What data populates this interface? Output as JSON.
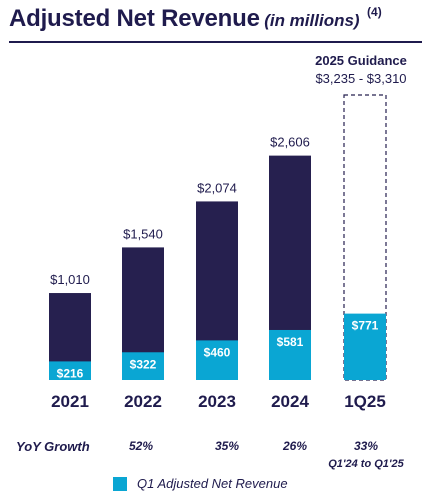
{
  "header": {
    "title": "Adjusted Net Revenue",
    "subtitle": "(in millions)",
    "footnote": "(4)"
  },
  "colors": {
    "total": "#26204f",
    "q1": "#0aa6d3",
    "text": "#1f1b4d"
  },
  "chart_data": {
    "type": "bar",
    "categories": [
      "2021",
      "2022",
      "2023",
      "2024",
      "1Q25"
    ],
    "series": [
      {
        "name": "Q1 Adjusted Net Revenue",
        "values": [
          216,
          322,
          460,
          581,
          771
        ],
        "labels": [
          "$216",
          "$322",
          "$460",
          "$581",
          "$771"
        ]
      },
      {
        "values": [
          1010,
          1540,
          2074,
          2606,
          null
        ],
        "labels": [
          "$1,010",
          "$1,540",
          "$2,074",
          "$2,606",
          ""
        ]
      }
    ],
    "guidance": {
      "category": "1Q25",
      "title": "2025 Guidance",
      "range_label": "$3,235 - $3,310",
      "low": 3235,
      "high": 3310
    },
    "ylim": [
      0,
      3310
    ],
    "grid": false,
    "legend": "bottom"
  },
  "yoy": {
    "label": "YoY Growth",
    "values": [
      "",
      "52%",
      "35%",
      "26%",
      "33%"
    ],
    "note": "Q1'24 to Q1'25"
  },
  "legend": {
    "label": "Q1 Adjusted Net Revenue"
  }
}
